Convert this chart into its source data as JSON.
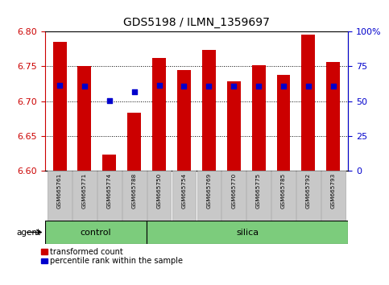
{
  "title": "GDS5198 / ILMN_1359697",
  "samples": [
    "GSM665761",
    "GSM665771",
    "GSM665774",
    "GSM665788",
    "GSM665750",
    "GSM665754",
    "GSM665769",
    "GSM665770",
    "GSM665775",
    "GSM665785",
    "GSM665792",
    "GSM665793"
  ],
  "bar_values": [
    6.785,
    6.75,
    6.623,
    6.683,
    6.762,
    6.745,
    6.773,
    6.728,
    6.752,
    6.738,
    6.795,
    6.756
  ],
  "blue_dot_values": [
    6.723,
    6.722,
    6.701,
    6.713,
    6.723,
    6.722,
    6.722,
    6.722,
    6.722,
    6.722,
    6.722,
    6.722
  ],
  "bar_base": 6.6,
  "ylim": [
    6.6,
    6.8
  ],
  "y_left_ticks": [
    6.6,
    6.65,
    6.7,
    6.75,
    6.8
  ],
  "y_right_ticks": [
    0,
    25,
    50,
    75,
    100
  ],
  "y_right_labels": [
    "0",
    "25",
    "50",
    "75",
    "100%"
  ],
  "bar_color": "#cc0000",
  "dot_color": "#0000cc",
  "n_control": 4,
  "n_silica": 8,
  "control_color": "#7ccc7c",
  "silica_color": "#7ccc7c",
  "agent_label": "agent",
  "control_label": "control",
  "silica_label": "silica",
  "legend_red_label": "transformed count",
  "legend_blue_label": "percentile rank within the sample",
  "tick_color_left": "#cc0000",
  "tick_color_right": "#0000cc",
  "xtick_bg": "#c8c8c8",
  "figsize": [
    4.83,
    3.54
  ],
  "dpi": 100
}
